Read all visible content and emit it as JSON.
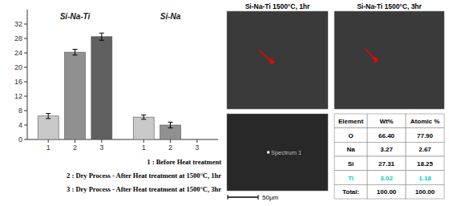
{
  "chart_data": [
    {
      "type": "bar",
      "categories": [
        "Si-Na-Ti",
        "Si-Na"
      ],
      "series": [
        {
          "name": "1",
          "color": "#c8c8c8",
          "values": [
            6.5,
            6.2
          ],
          "errors": [
            0.7,
            0.6
          ]
        },
        {
          "name": "2",
          "color": "#909090",
          "values": [
            24.2,
            4.0
          ],
          "errors": [
            0.8,
            0.8
          ]
        },
        {
          "name": "3",
          "color": "#606060",
          "values": [
            28.5,
            0.0
          ],
          "errors": [
            1.0,
            0.0
          ]
        }
      ],
      "ylim": [
        0,
        36
      ],
      "yticks": [
        0,
        4,
        8,
        12,
        16,
        20,
        24,
        28,
        32
      ],
      "grid": false,
      "annotations": [
        "1 : Before Heat treatment",
        "2 : Dry Process - After Heat treatment at 1500°C, 1hr",
        "3 : Dry Process - After Heat treatment at 1500°C, 3hr"
      ]
    },
    {
      "type": "table",
      "columns": [
        "Element",
        "Wt%",
        "Atomic %"
      ],
      "rows": [
        [
          "O",
          "66.40",
          "77.90"
        ],
        [
          "Na",
          "3.27",
          "2.67"
        ],
        [
          "Si",
          "27.31",
          "18.25"
        ],
        [
          "Ti",
          "3.02",
          "1.18"
        ],
        [
          "Total:",
          "100.00",
          "100.00"
        ]
      ],
      "highlight_row": 3,
      "highlight_color": "#00cccc"
    }
  ],
  "images": [
    {
      "title": "Si-Na-Ti  1500°C, 1hr"
    },
    {
      "title": "Si-Na-Ti  1500°C, 3hr"
    },
    {
      "label": "Spectrum 1",
      "scale_bar": "50μm"
    }
  ]
}
